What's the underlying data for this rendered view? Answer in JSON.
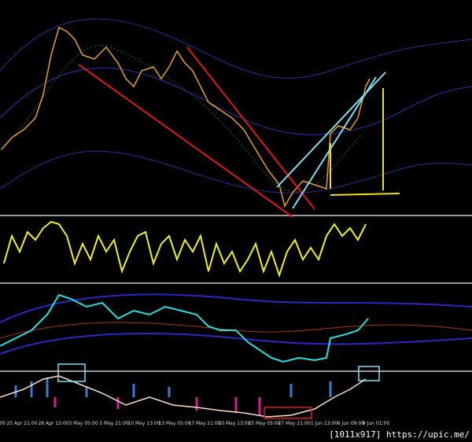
{
  "x_axis": {
    "labels": [
      "00",
      "25 Apr 21:00",
      "28 Apr 13:00",
      "3 May 05:00",
      "5 May 21:00",
      "10 May 13:00",
      "13 May 05:00",
      "17 May 21:00",
      "20 May 13:00",
      "25 May 05:00",
      "27 May 21:00",
      "1 Jun 13:00",
      "6 Jun 09:00",
      "9 Jun 01:00"
    ]
  },
  "watermark": "[1011x917] https://upic.me/"
}
